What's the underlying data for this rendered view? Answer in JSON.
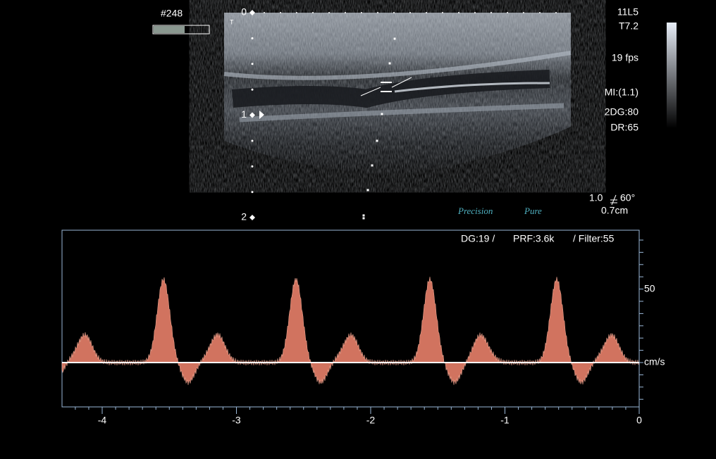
{
  "frame": {
    "number": "#248"
  },
  "probe": {
    "model": "11L5",
    "setting": "T7.2",
    "frame_rate": "19 fps",
    "mi": "MI:(1.1)",
    "gain": "2DG:80",
    "dynamic_range": "DR:65"
  },
  "depth_labels": [
    "0",
    "1",
    "2"
  ],
  "doppler_info": {
    "gate": "1.0",
    "angle": "60°",
    "sample": "0.7cm"
  },
  "brand": [
    "Precision",
    "Pure"
  ],
  "spectral": {
    "gain": "DG:19 /",
    "prf": "PRF:3.6k",
    "filter": "/ Filter:55",
    "scale_label": "50",
    "unit": "cm/s",
    "time_labels": [
      "-4",
      "-3",
      "-2",
      "-1",
      "0"
    ]
  }
}
